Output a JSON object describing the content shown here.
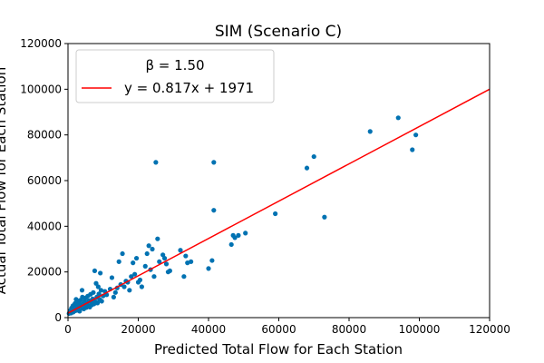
{
  "chart_data": {
    "type": "scatter",
    "title": "SIM (Scenario C)",
    "xlabel": "Predicted Total Flow for Each Station",
    "ylabel": "Actual Total Flow for Each Station",
    "xlim": [
      0,
      120000
    ],
    "ylim": [
      0,
      120000
    ],
    "xticks": [
      0,
      20000,
      40000,
      60000,
      80000,
      100000,
      120000
    ],
    "yticks": [
      0,
      20000,
      40000,
      60000,
      80000,
      100000,
      120000
    ],
    "grid": false,
    "legend": {
      "placement": "top-left",
      "title": "β = 1.50",
      "entries": [
        "y = 0.817x + 1971"
      ]
    },
    "colors": {
      "points": "#0072b2",
      "fit_line": "#ff0000"
    },
    "fit_line": {
      "slope": 0.817,
      "intercept": 1971,
      "x_range": [
        0,
        120000
      ]
    },
    "points": [
      [
        300,
        1800
      ],
      [
        500,
        2600
      ],
      [
        700,
        3200
      ],
      [
        900,
        2000
      ],
      [
        1000,
        4200
      ],
      [
        1200,
        3000
      ],
      [
        1400,
        5200
      ],
      [
        1500,
        2400
      ],
      [
        1700,
        3600
      ],
      [
        1900,
        4600
      ],
      [
        2000,
        6200
      ],
      [
        2100,
        3000
      ],
      [
        2300,
        8000
      ],
      [
        2500,
        4000
      ],
      [
        2600,
        5400
      ],
      [
        2800,
        3200
      ],
      [
        3000,
        6600
      ],
      [
        3100,
        4800
      ],
      [
        3300,
        2800
      ],
      [
        3500,
        7600
      ],
      [
        3600,
        5600
      ],
      [
        3800,
        4200
      ],
      [
        4000,
        12000
      ],
      [
        4100,
        9000
      ],
      [
        4300,
        6000
      ],
      [
        4500,
        3800
      ],
      [
        4700,
        7200
      ],
      [
        4900,
        5000
      ],
      [
        5000,
        8600
      ],
      [
        5200,
        4400
      ],
      [
        5400,
        6400
      ],
      [
        5600,
        9400
      ],
      [
        5800,
        5200
      ],
      [
        6000,
        7400
      ],
      [
        6200,
        4600
      ],
      [
        6400,
        10200
      ],
      [
        6600,
        6800
      ],
      [
        6800,
        5600
      ],
      [
        7000,
        8200
      ],
      [
        7200,
        11000
      ],
      [
        7400,
        6000
      ],
      [
        7600,
        20500
      ],
      [
        7800,
        7000
      ],
      [
        8000,
        15000
      ],
      [
        8200,
        9000
      ],
      [
        8400,
        6400
      ],
      [
        8600,
        13500
      ],
      [
        8800,
        10400
      ],
      [
        9000,
        8000
      ],
      [
        9200,
        19500
      ],
      [
        9400,
        12000
      ],
      [
        9600,
        7200
      ],
      [
        10000,
        9500
      ],
      [
        10500,
        11500
      ],
      [
        11000,
        10000
      ],
      [
        12000,
        12500
      ],
      [
        12500,
        17500
      ],
      [
        13000,
        9000
      ],
      [
        13500,
        11000
      ],
      [
        14000,
        13000
      ],
      [
        14500,
        24500
      ],
      [
        15000,
        14500
      ],
      [
        15500,
        28000
      ],
      [
        16000,
        13500
      ],
      [
        16500,
        16000
      ],
      [
        17000,
        15500
      ],
      [
        17500,
        12000
      ],
      [
        18000,
        18000
      ],
      [
        18500,
        24000
      ],
      [
        19000,
        19000
      ],
      [
        19500,
        26000
      ],
      [
        20000,
        15500
      ],
      [
        20500,
        16500
      ],
      [
        21000,
        13500
      ],
      [
        22000,
        22500
      ],
      [
        22500,
        28000
      ],
      [
        23000,
        31500
      ],
      [
        23500,
        21000
      ],
      [
        24000,
        30000
      ],
      [
        24500,
        18000
      ],
      [
        25000,
        68000
      ],
      [
        25500,
        34500
      ],
      [
        26000,
        24500
      ],
      [
        27000,
        27500
      ],
      [
        27500,
        26000
      ],
      [
        28000,
        23500
      ],
      [
        28500,
        20000
      ],
      [
        29000,
        20500
      ],
      [
        32000,
        29500
      ],
      [
        33000,
        18000
      ],
      [
        33500,
        27000
      ],
      [
        34000,
        24000
      ],
      [
        35000,
        24500
      ],
      [
        40000,
        21500
      ],
      [
        41000,
        25000
      ],
      [
        41500,
        68000
      ],
      [
        41500,
        47000
      ],
      [
        46500,
        32000
      ],
      [
        47000,
        36000
      ],
      [
        47500,
        35000
      ],
      [
        48500,
        36000
      ],
      [
        50500,
        37000
      ],
      [
        59000,
        45500
      ],
      [
        68000,
        65500
      ],
      [
        70000,
        70500
      ],
      [
        73000,
        44000
      ],
      [
        86000,
        81500
      ],
      [
        94000,
        87500
      ],
      [
        98000,
        73500
      ],
      [
        99000,
        80000
      ]
    ]
  }
}
